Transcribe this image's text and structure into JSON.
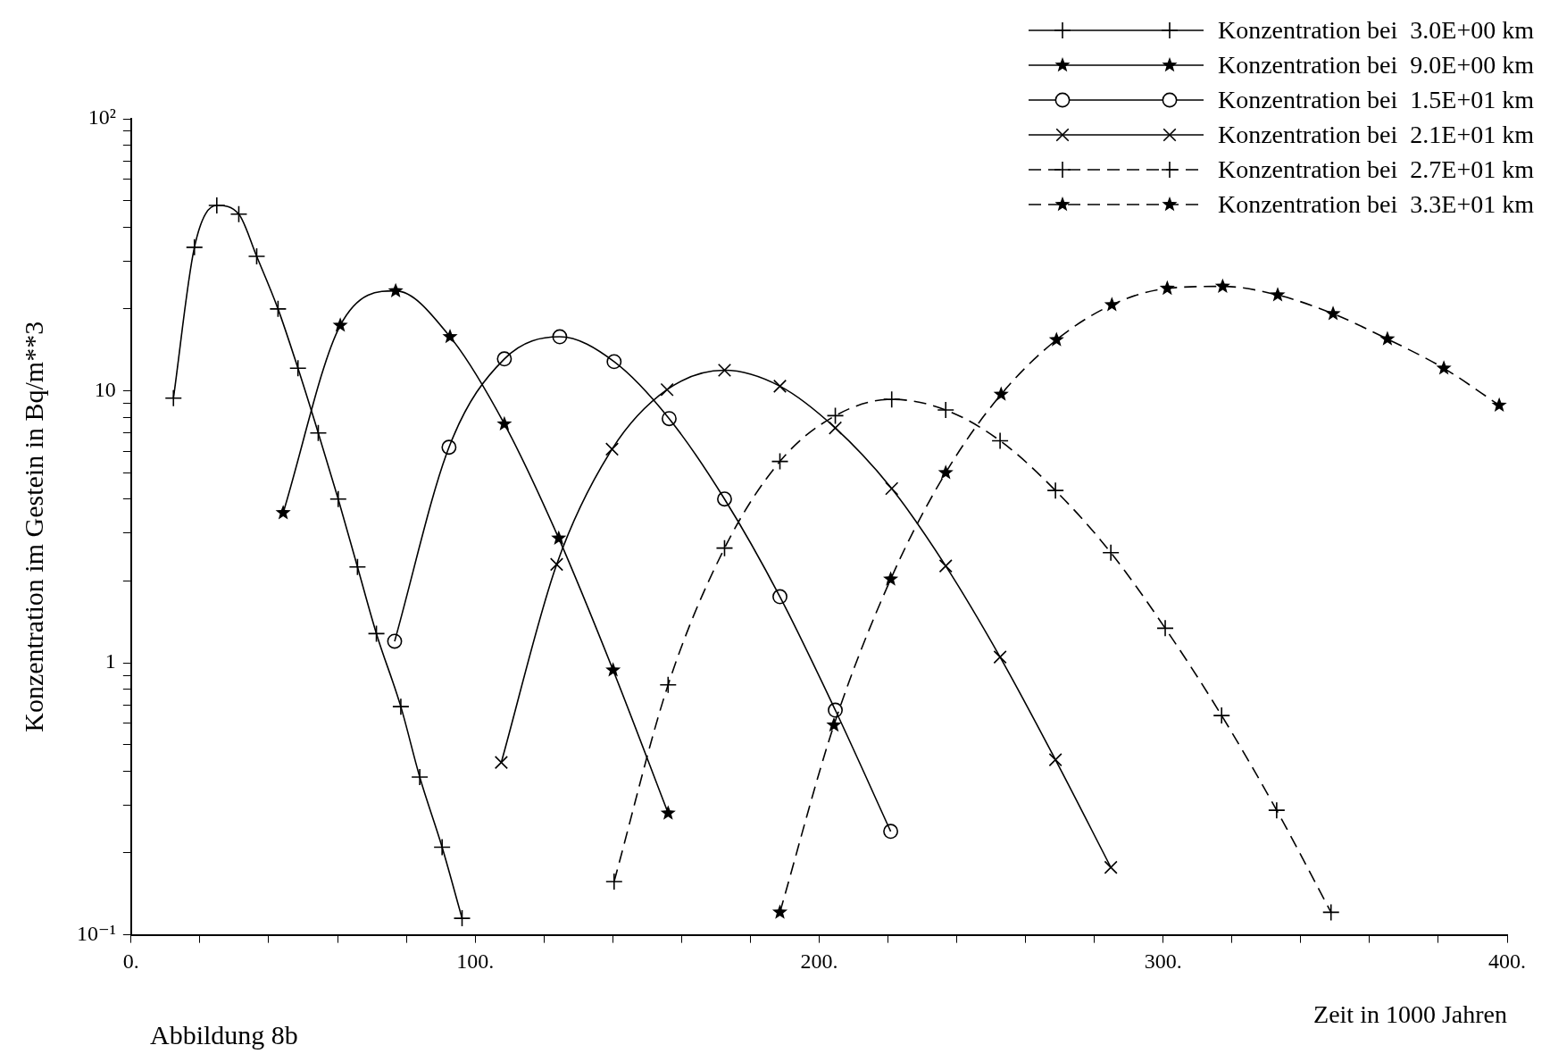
{
  "chart_data": {
    "type": "line",
    "xlabel": "Zeit in 1000 Jahren",
    "ylabel": "Konzentration im Gestein in Bq/m**3",
    "annotations": [
      "Abbildung 8b"
    ],
    "log": "y",
    "grid": false,
    "legend": "top right",
    "xlim": [
      0,
      400
    ],
    "ylim": [
      0.1,
      100
    ],
    "xticks": [
      {
        "value": 0,
        "label": "0."
      },
      {
        "value": 20,
        "label": null
      },
      {
        "value": 40,
        "label": null
      },
      {
        "value": 60,
        "label": null
      },
      {
        "value": 80,
        "label": null
      },
      {
        "value": 100,
        "label": "100."
      },
      {
        "value": 120,
        "label": null
      },
      {
        "value": 140,
        "label": null
      },
      {
        "value": 160,
        "label": null
      },
      {
        "value": 180,
        "label": null
      },
      {
        "value": 200,
        "label": "200."
      },
      {
        "value": 220,
        "label": null
      },
      {
        "value": 240,
        "label": null
      },
      {
        "value": 260,
        "label": null
      },
      {
        "value": 280,
        "label": null
      },
      {
        "value": 300,
        "label": "300."
      },
      {
        "value": 320,
        "label": null
      },
      {
        "value": 340,
        "label": null
      },
      {
        "value": 360,
        "label": null
      },
      {
        "value": 380,
        "label": null
      },
      {
        "value": 400,
        "label": "400."
      }
    ],
    "yticks": [
      {
        "value": 0.1,
        "label": "10⁻¹"
      },
      {
        "value": 0.2,
        "label": null
      },
      {
        "value": 0.3,
        "label": null
      },
      {
        "value": 0.4,
        "label": null
      },
      {
        "value": 0.5,
        "label": null
      },
      {
        "value": 0.6,
        "label": null
      },
      {
        "value": 0.7,
        "label": null
      },
      {
        "value": 0.8,
        "label": null
      },
      {
        "value": 0.9,
        "label": null
      },
      {
        "value": 1,
        "label": "1"
      },
      {
        "value": 2,
        "label": null
      },
      {
        "value": 3,
        "label": null
      },
      {
        "value": 4,
        "label": null
      },
      {
        "value": 5,
        "label": null
      },
      {
        "value": 6,
        "label": null
      },
      {
        "value": 7,
        "label": null
      },
      {
        "value": 8,
        "label": null
      },
      {
        "value": 9,
        "label": null
      },
      {
        "value": 10,
        "label": "10"
      },
      {
        "value": 20,
        "label": null
      },
      {
        "value": 30,
        "label": null
      },
      {
        "value": 40,
        "label": null
      },
      {
        "value": 50,
        "label": null
      },
      {
        "value": 60,
        "label": null
      },
      {
        "value": 70,
        "label": null
      },
      {
        "value": 80,
        "label": null
      },
      {
        "value": 90,
        "label": null
      },
      {
        "value": 100,
        "label": "10²"
      }
    ],
    "series": [
      {
        "name": "Konzentration bei  3.0E+00 km",
        "color": "#000000",
        "marker": "cross",
        "line_style": "solid",
        "x": [
          12.3,
          18.4,
          24.9,
          31.3,
          36.5,
          42.7,
          48.5,
          54.4,
          60.2,
          65.8,
          71.3,
          78.4,
          83.9,
          90.4,
          96.2
        ],
        "values": [
          9.4,
          33.7,
          48,
          44.6,
          31.2,
          20,
          12.1,
          7,
          4,
          2.25,
          1.28,
          0.69,
          0.38,
          0.21,
          0.115
        ]
      },
      {
        "name": "Konzentration bei  9.0E+00 km",
        "color": "#000000",
        "marker": "star",
        "line_style": "solid",
        "x": [
          44.2,
          60.8,
          76.9,
          92.7,
          108.5,
          124.3,
          140.1,
          156.1
        ],
        "values": [
          3.56,
          17.4,
          23.3,
          15.8,
          7.55,
          2.87,
          0.94,
          0.28
        ]
      },
      {
        "name": "Konzentration bei  1.5E+01 km",
        "color": "#000000",
        "marker": "circle",
        "line_style": "solid",
        "x": [
          76.6,
          92.4,
          108.5,
          124.6,
          140.4,
          156.4,
          172.5,
          188.6,
          204.7,
          220.8
        ],
        "values": [
          1.2,
          6.2,
          13.1,
          15.8,
          12.8,
          7.9,
          4,
          1.75,
          0.67,
          0.24
        ]
      },
      {
        "name": "Konzentration bei  2.1E+01 km",
        "color": "#000000",
        "marker": "x",
        "line_style": "solid",
        "x": [
          107.6,
          123.7,
          139.8,
          155.8,
          172.5,
          188.6,
          204.7,
          221.1,
          236.8,
          252.6,
          268.7,
          284.8
        ],
        "values": [
          0.43,
          2.3,
          6.1,
          10.1,
          11.9,
          10.4,
          7.3,
          4.37,
          2.27,
          1.05,
          0.44,
          0.177
        ]
      },
      {
        "name": "Konzentration bei  2.7E+01 km",
        "color": "#000000",
        "marker": "cross",
        "line_style": "dashed",
        "x": [
          140.4,
          156.1,
          172.5,
          188.6,
          204.7,
          221.1,
          236.8,
          252.6,
          268.7,
          284.8,
          300.6,
          317,
          333,
          348.8
        ],
        "values": [
          0.157,
          0.83,
          2.64,
          5.5,
          8.1,
          9.3,
          8.5,
          6.55,
          4.3,
          2.54,
          1.34,
          0.64,
          0.287,
          0.121
        ]
      },
      {
        "name": "Konzentration bei  3.3E+01 km",
        "color": "#000000",
        "marker": "star",
        "line_style": "dashed",
        "x": [
          188.6,
          204.3,
          220.8,
          236.8,
          252.9,
          269,
          285.1,
          301.2,
          317.3,
          333.3,
          349.4,
          365.2,
          381.6,
          397.7
        ],
        "values": [
          0.121,
          0.59,
          2.03,
          5,
          9.7,
          15.4,
          20.7,
          23.8,
          24.2,
          22.5,
          19.2,
          15.5,
          12.1,
          8.85
        ]
      }
    ]
  }
}
